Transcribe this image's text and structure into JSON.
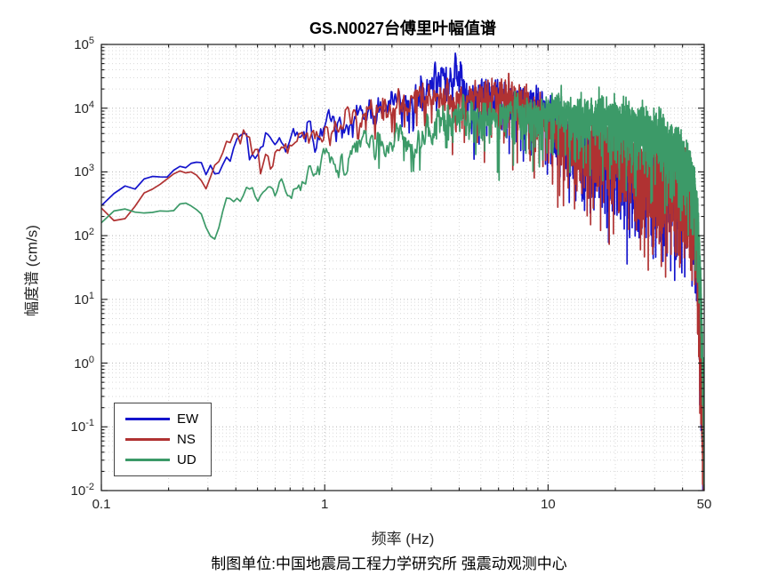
{
  "title": "GS.N0027台傅里叶幅值谱",
  "axes": {
    "xlabel": "频率 (Hz)",
    "ylabel": "幅度谱 (cm/s)",
    "x_tick_labels": [
      "0.1",
      "1",
      "10",
      "50"
    ],
    "y_tick_exponents": [
      5,
      4,
      3,
      2,
      1,
      0,
      -1,
      -2
    ]
  },
  "caption": "制图单位:中国地震局工程力学研究所 强震动观测中心",
  "legend": {
    "position": "lower-left",
    "items": [
      "EW",
      "NS",
      "UD"
    ]
  },
  "chart_data": {
    "type": "line",
    "title": "GS.N0027台傅里叶幅值谱",
    "xlabel": "频率 (Hz)",
    "ylabel": "幅度谱 (cm/s)",
    "x_scale": "log",
    "y_scale": "log",
    "xlim": [
      0.1,
      50
    ],
    "ylim": [
      0.01,
      100000
    ],
    "x_ticks": [
      0.1,
      1,
      10,
      50
    ],
    "y_ticks": [
      100000,
      10000,
      1000,
      100,
      10,
      1,
      0.1,
      0.01
    ],
    "grid": "major and minor dotted gridlines, both axes",
    "legend_position": "lower left",
    "note": "Fourier amplitude spectra of station GS.N0027; points are trend values (frequency Hz, amplitude cm/s) read from the noisy spectra; all three components collapse to ~0.02 cm/s at 50 Hz",
    "series": [
      {
        "name": "EW",
        "color": "#1414cc",
        "points": [
          [
            0.1,
            520
          ],
          [
            0.12,
            470
          ],
          [
            0.14,
            560
          ],
          [
            0.17,
            560
          ],
          [
            0.2,
            640
          ],
          [
            0.23,
            900
          ],
          [
            0.26,
            1050
          ],
          [
            0.3,
            1300
          ],
          [
            0.33,
            900
          ],
          [
            0.36,
            1600
          ],
          [
            0.4,
            2200
          ],
          [
            0.45,
            2400
          ],
          [
            0.5,
            2000
          ],
          [
            0.6,
            2800
          ],
          [
            0.7,
            3200
          ],
          [
            0.8,
            4500
          ],
          [
            0.9,
            4000
          ],
          [
            1.0,
            6000
          ],
          [
            1.2,
            6500
          ],
          [
            1.5,
            7500
          ],
          [
            1.8,
            9500
          ],
          [
            2.2,
            12000
          ],
          [
            2.6,
            15000
          ],
          [
            3.0,
            22000
          ],
          [
            3.4,
            35000
          ],
          [
            3.7,
            28000
          ],
          [
            4.0,
            30000
          ],
          [
            4.4,
            15000
          ],
          [
            5.0,
            14000
          ],
          [
            6.0,
            15000
          ],
          [
            7.0,
            13000
          ],
          [
            8.0,
            13000
          ],
          [
            9.0,
            11000
          ],
          [
            10.0,
            8500
          ],
          [
            11.0,
            6000
          ],
          [
            12.0,
            4000
          ],
          [
            14.0,
            2200
          ],
          [
            17.0,
            1800
          ],
          [
            20.0,
            1400
          ],
          [
            24.0,
            1000
          ],
          [
            28.0,
            850
          ],
          [
            32.0,
            900
          ],
          [
            36.0,
            700
          ],
          [
            40.0,
            900
          ],
          [
            43.0,
            500
          ],
          [
            45.0,
            220
          ],
          [
            46.5,
            60
          ],
          [
            48.0,
            2
          ],
          [
            49.5,
            0.1
          ],
          [
            50.0,
            0.04
          ]
        ]
      },
      {
        "name": "NS",
        "color": "#b03232",
        "points": [
          [
            0.1,
            210
          ],
          [
            0.12,
            110
          ],
          [
            0.15,
            300
          ],
          [
            0.18,
            420
          ],
          [
            0.2,
            550
          ],
          [
            0.23,
            800
          ],
          [
            0.26,
            1000
          ],
          [
            0.3,
            950
          ],
          [
            0.33,
            2000
          ],
          [
            0.36,
            2800
          ],
          [
            0.4,
            2400
          ],
          [
            0.45,
            2600
          ],
          [
            0.5,
            1800
          ],
          [
            0.6,
            2200
          ],
          [
            0.7,
            2600
          ],
          [
            0.8,
            3500
          ],
          [
            0.9,
            3200
          ],
          [
            1.0,
            5000
          ],
          [
            1.2,
            5500
          ],
          [
            1.5,
            7000
          ],
          [
            1.8,
            8000
          ],
          [
            2.2,
            10000
          ],
          [
            2.6,
            14000
          ],
          [
            3.0,
            16000
          ],
          [
            3.4,
            14000
          ],
          [
            3.8,
            12000
          ],
          [
            4.2,
            13000
          ],
          [
            5.0,
            14000
          ],
          [
            6.0,
            16000
          ],
          [
            7.0,
            14000
          ],
          [
            8.0,
            12000
          ],
          [
            9.0,
            9500
          ],
          [
            10.0,
            7000
          ],
          [
            11.0,
            4500
          ],
          [
            12.0,
            3500
          ],
          [
            14.0,
            2200
          ],
          [
            16.0,
            2500
          ],
          [
            18.0,
            2800
          ],
          [
            20.0,
            1800
          ],
          [
            23.0,
            2200
          ],
          [
            26.0,
            1200
          ],
          [
            30.0,
            1000
          ],
          [
            34.0,
            900
          ],
          [
            38.0,
            1000
          ],
          [
            41.0,
            1200
          ],
          [
            43.0,
            650
          ],
          [
            45.0,
            260
          ],
          [
            46.5,
            60
          ],
          [
            48.0,
            2
          ],
          [
            49.5,
            0.05
          ],
          [
            50.0,
            0.015
          ]
        ]
      },
      {
        "name": "UD",
        "color": "#3c9a68",
        "points": [
          [
            0.1,
            220
          ],
          [
            0.13,
            260
          ],
          [
            0.16,
            280
          ],
          [
            0.2,
            230
          ],
          [
            0.24,
            300
          ],
          [
            0.28,
            200
          ],
          [
            0.31,
            100
          ],
          [
            0.33,
            80
          ],
          [
            0.36,
            320
          ],
          [
            0.4,
            450
          ],
          [
            0.45,
            380
          ],
          [
            0.5,
            420
          ],
          [
            0.55,
            650
          ],
          [
            0.6,
            800
          ],
          [
            0.7,
            480
          ],
          [
            0.8,
            800
          ],
          [
            0.9,
            900
          ],
          [
            1.0,
            1800
          ],
          [
            1.2,
            1400
          ],
          [
            1.5,
            2200
          ],
          [
            1.8,
            2600
          ],
          [
            2.2,
            3500
          ],
          [
            2.6,
            2800
          ],
          [
            3.0,
            4500
          ],
          [
            3.5,
            6000
          ],
          [
            4.0,
            6500
          ],
          [
            4.5,
            7000
          ],
          [
            5.5,
            6000
          ],
          [
            6.5,
            7500
          ],
          [
            7.5,
            8000
          ],
          [
            8.5,
            7000
          ],
          [
            10.0,
            9000
          ],
          [
            11.5,
            8000
          ],
          [
            13.0,
            8500
          ],
          [
            15.0,
            7000
          ],
          [
            17.0,
            7500
          ],
          [
            20.0,
            6500
          ],
          [
            23.0,
            5500
          ],
          [
            26.0,
            5000
          ],
          [
            30.0,
            3800
          ],
          [
            33.0,
            3200
          ],
          [
            36.0,
            2600
          ],
          [
            39.0,
            1800
          ],
          [
            42.0,
            1200
          ],
          [
            44.0,
            800
          ],
          [
            45.5,
            400
          ],
          [
            47.0,
            150
          ],
          [
            48.5,
            10
          ],
          [
            49.5,
            0.5
          ],
          [
            50.0,
            0.02
          ]
        ]
      }
    ]
  }
}
